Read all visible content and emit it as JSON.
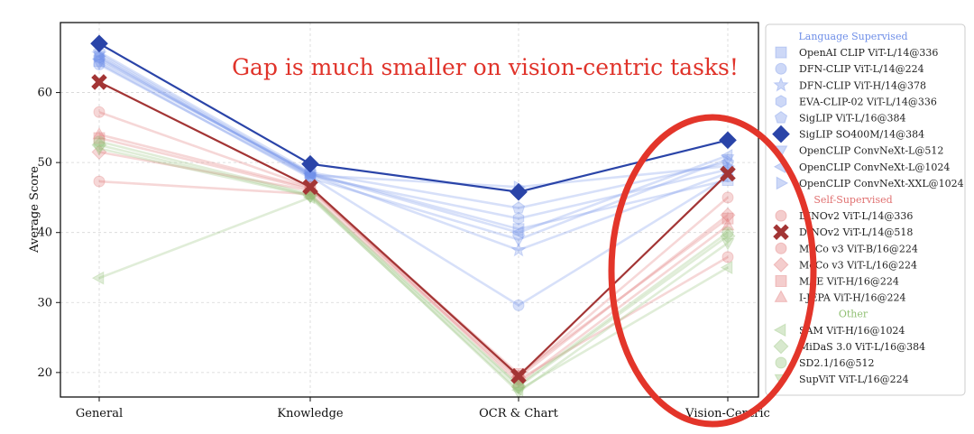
{
  "chart_data": {
    "type": "line",
    "title": "",
    "xlabel": "",
    "ylabel": "Average Score",
    "categories": [
      "General",
      "Knowledge",
      "OCR & Chart",
      "Vision-Centric"
    ],
    "ylim": [
      16.5,
      70
    ],
    "yticks": [
      20,
      30,
      40,
      50,
      60
    ],
    "grid": true,
    "legend_placement": "right",
    "annotation": "Gap is much smaller on vision-centric tasks!",
    "highlight": "ellipse around Vision-Centric",
    "groups": [
      {
        "title": "Language Supervised",
        "color": "#6f8fe8",
        "series": [
          {
            "name": "OpenAI CLIP ViT-L/14@336",
            "marker": "square",
            "values": [
              64.5,
              48.5,
              40.5,
              47.5
            ]
          },
          {
            "name": "DFN-CLIP ViT-L/14@224",
            "marker": "circle",
            "values": [
              64.0,
              48.0,
              29.6,
              48.0
            ]
          },
          {
            "name": "DFN-CLIP ViT-H/14@378",
            "marker": "star",
            "values": [
              65.5,
              48.3,
              37.5,
              48.5
            ]
          },
          {
            "name": "EVA-CLIP-02 ViT-L/14@336",
            "marker": "hexagon",
            "values": [
              65.0,
              48.1,
              42.0,
              49.0
            ]
          },
          {
            "name": "SigLIP ViT-L/16@384",
            "marker": "pentagon",
            "values": [
              65.8,
              48.6,
              43.5,
              50.0
            ]
          },
          {
            "name": "SigLIP SO400M/14@384",
            "marker": "diamond",
            "highlighted": true,
            "values": [
              67.0,
              49.8,
              45.8,
              53.2
            ]
          },
          {
            "name": "OpenCLIP ConvNeXt-L@512",
            "marker": "triangle-down",
            "values": [
              64.2,
              47.8,
              39.0,
              50.5
            ]
          },
          {
            "name": "OpenCLIP ConvNeXt-L@1024",
            "marker": "triangle-left",
            "values": [
              64.8,
              48.4,
              40.0,
              51.0
            ]
          },
          {
            "name": "OpenCLIP ConvNeXt-XXL@1024",
            "marker": "triangle-right",
            "values": [
              65.2,
              48.2,
              46.5,
              49.5
            ]
          }
        ]
      },
      {
        "title": "Self-Supervised",
        "color": "#e07070",
        "series": [
          {
            "name": "DINOv2 ViT-L/14@336",
            "marker": "circle",
            "values": [
              57.2,
              46.5,
              19.5,
              45.0
            ]
          },
          {
            "name": "DINOv2 ViT-L/14@518",
            "marker": "x",
            "highlighted": true,
            "values": [
              61.5,
              46.5,
              19.5,
              48.4
            ]
          },
          {
            "name": "MoCo v3 ViT-B/16@224",
            "marker": "circle",
            "values": [
              47.3,
              45.5,
              19.0,
              36.5
            ]
          },
          {
            "name": "MoCo v3 ViT-L/16@224",
            "marker": "diamond",
            "values": [
              51.5,
              46.0,
              19.3,
              42.5
            ]
          },
          {
            "name": "MAE ViT-H/16@224",
            "marker": "square",
            "values": [
              53.5,
              46.2,
              19.8,
              42.0
            ]
          },
          {
            "name": "I-JEPA ViT-H/16@224",
            "marker": "triangle-up",
            "values": [
              54.0,
              46.4,
              18.5,
              41.0
            ]
          }
        ]
      },
      {
        "title": "Other",
        "color": "#8fbf72",
        "series": [
          {
            "name": "SAM ViT-H/16@1024",
            "marker": "triangle-left",
            "values": [
              33.5,
              45.0,
              17.5,
              35.0
            ]
          },
          {
            "name": "MiDaS 3.0 ViT-L/16@384",
            "marker": "diamond",
            "values": [
              52.5,
              45.3,
              18.0,
              39.5
            ]
          },
          {
            "name": "SD2.1/16@512",
            "marker": "circle",
            "values": [
              53.0,
              45.5,
              18.2,
              40.0
            ]
          },
          {
            "name": "SupViT ViT-L/16@224",
            "marker": "triangle-down",
            "values": [
              52.0,
              45.2,
              17.2,
              38.5
            ]
          }
        ]
      }
    ]
  }
}
